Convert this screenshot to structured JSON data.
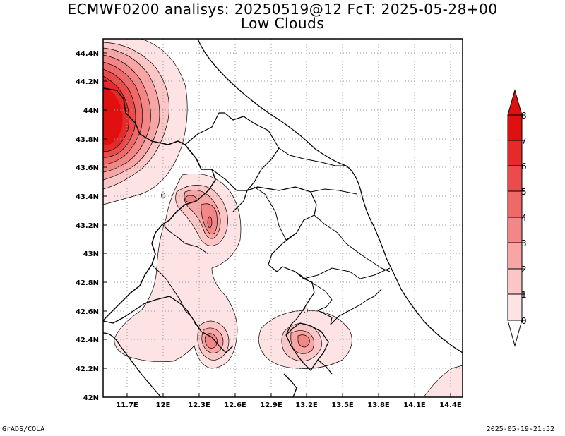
{
  "title": {
    "line1": "ECMWF0200 analisys: 20250519@12 FcT: 2025-05-28+00",
    "line2": "Low Clouds"
  },
  "footer": {
    "left": "GrADS/COLA",
    "right": "2025-05-19-21:52"
  },
  "map": {
    "lon_ticks": [
      "11.7E",
      "12E",
      "12.3E",
      "12.6E",
      "12.9E",
      "13.2E",
      "13.5E",
      "13.8E",
      "14.1E",
      "14.4E"
    ],
    "lat_ticks": [
      "42N",
      "42.2N",
      "42.4N",
      "42.6N",
      "42.8N",
      "43N",
      "43.2N",
      "43.4N",
      "43.6N",
      "43.8N",
      "44N",
      "44.2N",
      "44.4N"
    ],
    "grid": "dotted"
  },
  "colorbar": {
    "labels": [
      "0",
      "1",
      "2",
      "3",
      "4",
      "5",
      "6",
      "7",
      "8"
    ],
    "colors": [
      "#ffffff",
      "#fde3e3",
      "#fbc6c6",
      "#f7a5a5",
      "#f38787",
      "#ef6969",
      "#eb4b4b",
      "#e62a2a",
      "#e01010"
    ]
  }
}
